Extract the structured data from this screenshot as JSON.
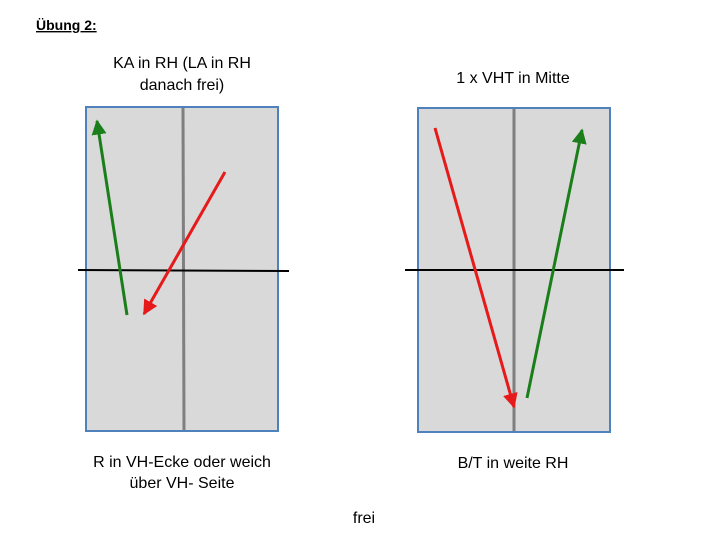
{
  "title": "Übung 2:",
  "diagrams": [
    {
      "top_label": [
        "KA in RH (LA in RH",
        "danach frei)"
      ],
      "bottom_label": [
        "R in VH-Ecke oder weich",
        "über VH- Seite"
      ]
    },
    {
      "top_label": [
        "1 x VHT in Mitte"
      ],
      "bottom_label": [
        "B/T in weite RH"
      ]
    }
  ],
  "footer": "frei"
}
